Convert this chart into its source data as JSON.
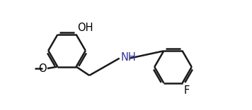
{
  "background_color": "#ffffff",
  "line_color": "#1a1a1a",
  "text_color": "#000000",
  "nh_color": "#3333aa",
  "line_width": 1.8,
  "font_size": 10.5,
  "figsize": [
    3.56,
    1.56
  ],
  "dpi": 100,
  "labels": {
    "OH": "OH",
    "O": "O",
    "NH": "NH",
    "F": "F",
    "methoxy": "O"
  }
}
